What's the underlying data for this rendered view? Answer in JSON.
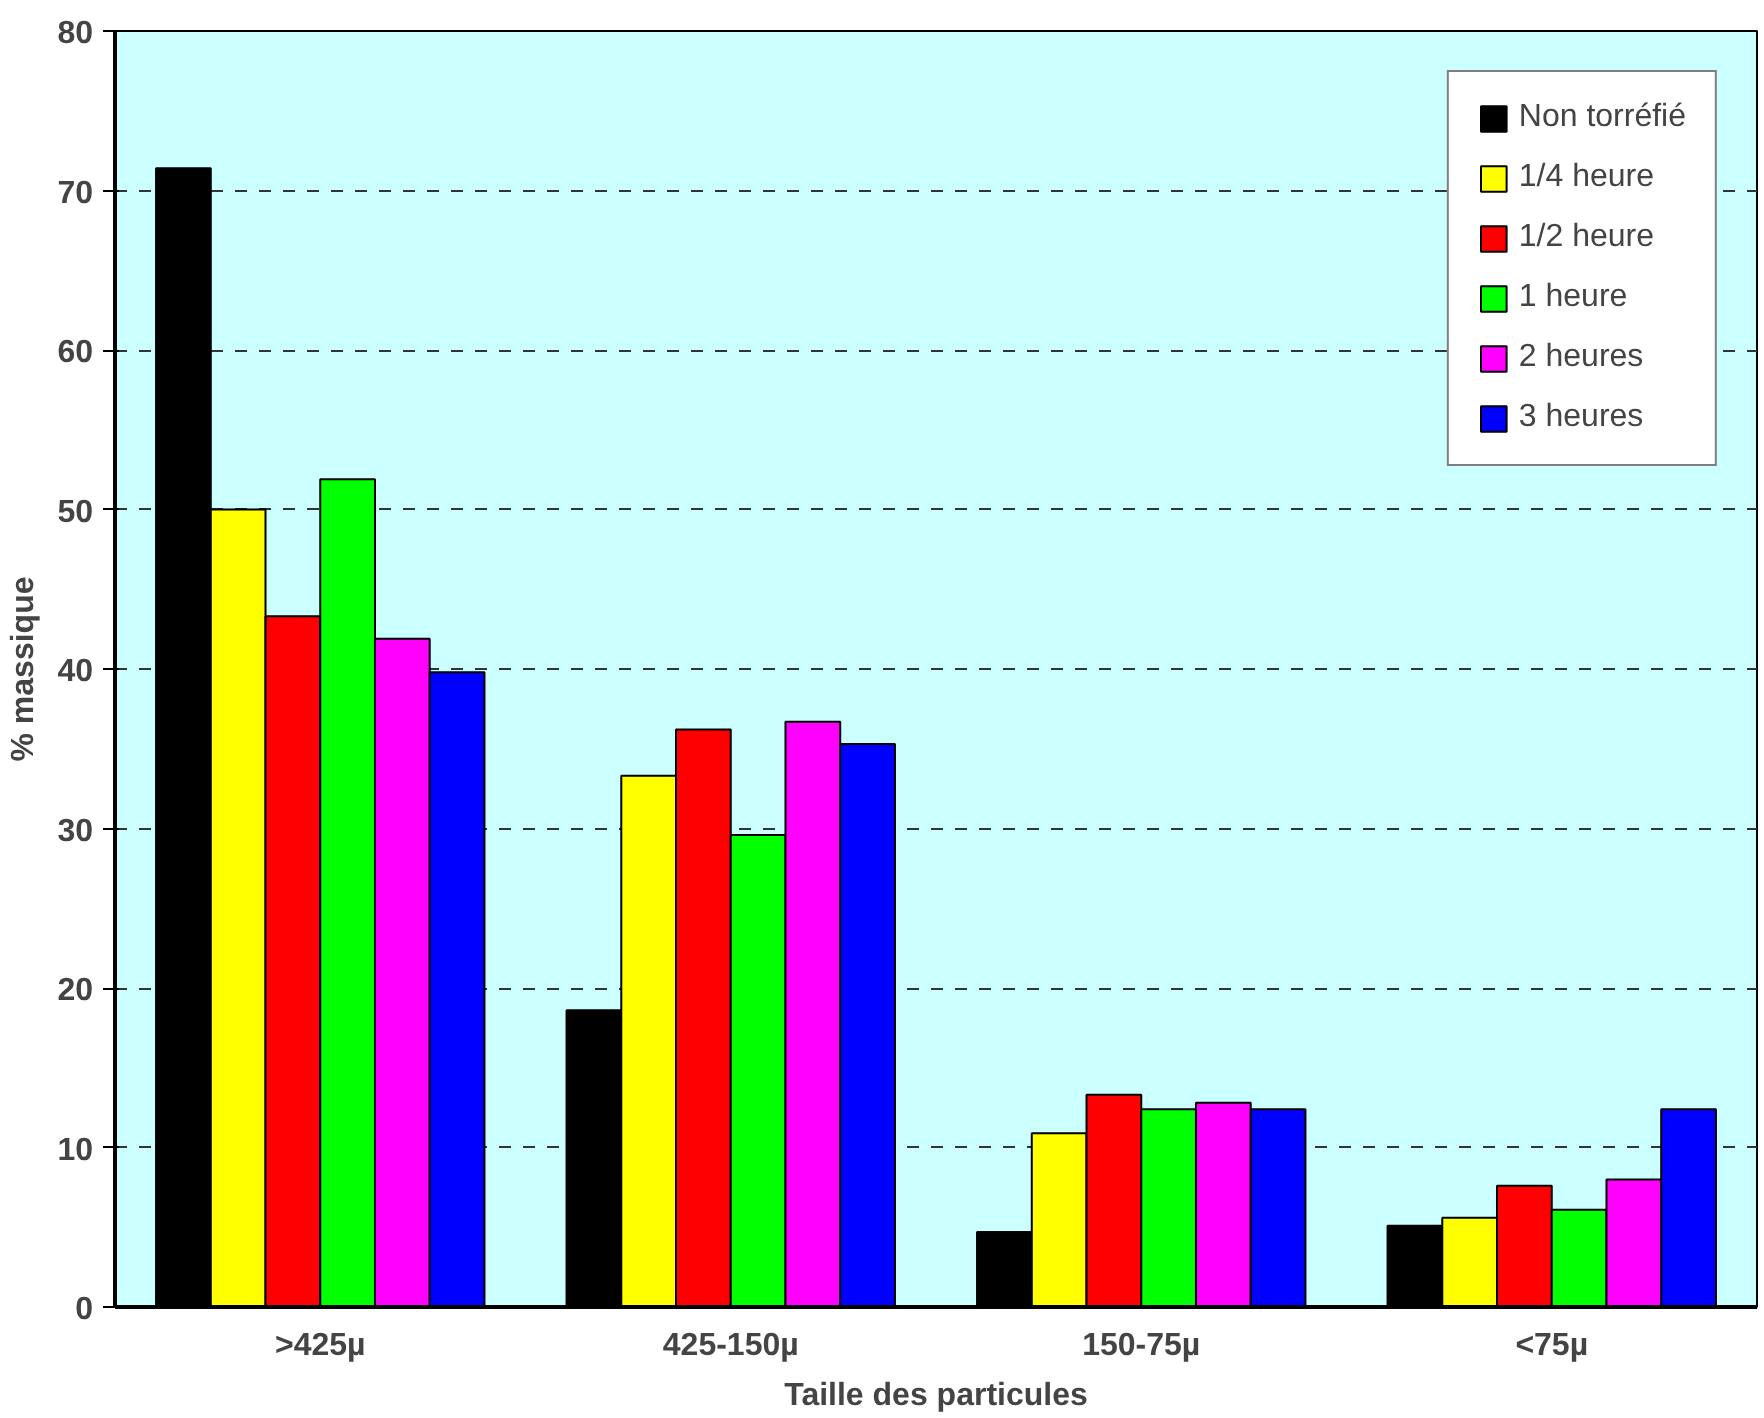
{
  "chart_data": {
    "type": "bar",
    "xlabel": "Taille des particules",
    "ylabel": "% massique",
    "categories": [
      ">425µ",
      "425-150µ",
      "150-75µ",
      "<75µ"
    ],
    "series": [
      {
        "name": "Non torréfié",
        "color": "#000000",
        "values": [
          71.4,
          18.6,
          4.7,
          5.1
        ]
      },
      {
        "name": "1/4 heure",
        "color": "#ffff00",
        "values": [
          50.0,
          33.3,
          10.9,
          5.6
        ]
      },
      {
        "name": "1/2 heure",
        "color": "#ff0000",
        "values": [
          43.3,
          36.2,
          13.3,
          7.6
        ]
      },
      {
        "name": "1 heure",
        "color": "#00ff00",
        "values": [
          51.9,
          29.6,
          12.4,
          6.1
        ]
      },
      {
        "name": "2 heures",
        "color": "#ff00ff",
        "values": [
          41.9,
          36.7,
          12.8,
          8.0
        ]
      },
      {
        "name": "3 heures",
        "color": "#0000ff",
        "values": [
          39.8,
          35.3,
          12.4,
          12.4
        ]
      }
    ],
    "ylim": [
      0,
      80
    ],
    "yticks": [
      0,
      10,
      20,
      30,
      40,
      50,
      60,
      70,
      80
    ],
    "grid": "y",
    "legend": "top right"
  }
}
